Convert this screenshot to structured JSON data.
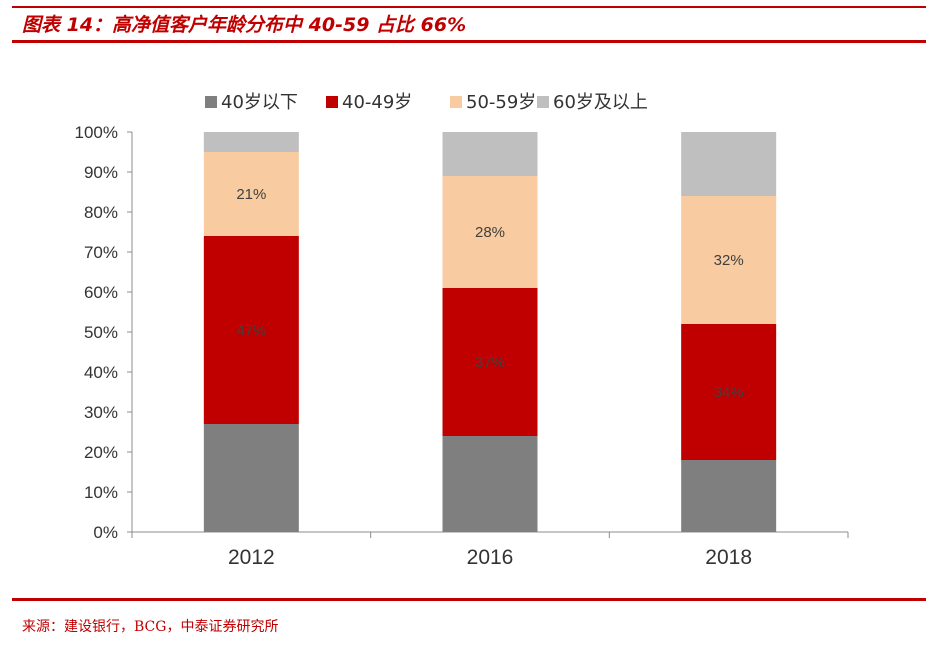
{
  "figure": {
    "title": "图表 14：高净值客户年龄分布中 40-59 占比 66%",
    "source": "来源：建设银行，BCG，中泰证券研究所"
  },
  "chart_data": {
    "type": "bar",
    "stacked": true,
    "title": "",
    "xlabel": "",
    "ylabel": "",
    "categories": [
      "2012",
      "2016",
      "2018"
    ],
    "ylim": [
      0,
      100
    ],
    "y_ticks": [
      "0%",
      "10%",
      "20%",
      "30%",
      "40%",
      "50%",
      "60%",
      "70%",
      "80%",
      "90%",
      "100%"
    ],
    "legend_position": "top",
    "grid": false,
    "series": [
      {
        "name": "40岁以下",
        "color": "#7f7f7f",
        "values": [
          27,
          24,
          18
        ],
        "labels": [
          "",
          "",
          ""
        ]
      },
      {
        "name": "40-49岁",
        "color": "#c00000",
        "values": [
          47,
          37,
          34
        ],
        "labels": [
          "47%",
          "37%",
          "34%"
        ]
      },
      {
        "name": "50-59岁",
        "color": "#f8cba0",
        "values": [
          21,
          28,
          32
        ],
        "labels": [
          "21%",
          "28%",
          "32%"
        ]
      },
      {
        "name": "60岁及以上",
        "color": "#bfbfbf",
        "values": [
          5,
          11,
          16
        ],
        "labels": [
          "",
          "",
          ""
        ]
      }
    ]
  }
}
